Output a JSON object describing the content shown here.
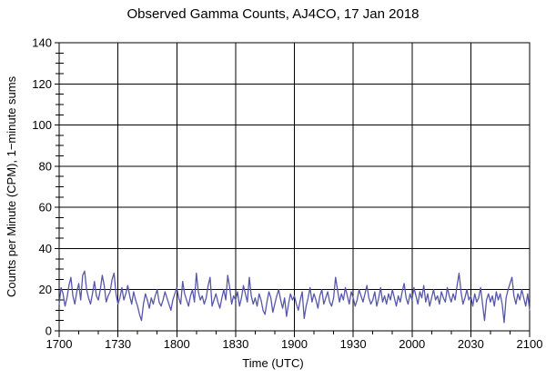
{
  "page": {
    "background": "#ffffff",
    "text_color": "#000000"
  },
  "chart_data": {
    "type": "line",
    "title": "Observed Gamma Counts, AJ4CO, 17 Jan 2018",
    "xlabel": "Time (UTC)",
    "ylabel": "Counts per Minute (CPM), 1−minute sums",
    "grid": true,
    "grid_color": "#000000",
    "frame_color": "#000000",
    "line_color": "#5757aa",
    "xlim": [
      0,
      240
    ],
    "ylim": [
      0,
      140
    ],
    "x_unit": "minutes after 1700 UTC",
    "xtick_positions": [
      0,
      30,
      60,
      90,
      120,
      150,
      180,
      210,
      240
    ],
    "xtick_labels": [
      "1700",
      "1730",
      "1800",
      "1830",
      "1900",
      "1930",
      "2000",
      "2030",
      "2100"
    ],
    "x_minor_step": 10,
    "ytick_positions": [
      0,
      20,
      40,
      60,
      80,
      100,
      120,
      140
    ],
    "ytick_labels": [
      "0",
      "20",
      "40",
      "60",
      "80",
      "100",
      "120",
      "140"
    ],
    "y_minor_step": 5,
    "sample_interval_minutes": 1,
    "series_name": "Observed gamma counts, 1-minute sums",
    "values": [
      13,
      21,
      18,
      12,
      16,
      22,
      26,
      17,
      13,
      19,
      23,
      15,
      27,
      29,
      20,
      16,
      13,
      18,
      24,
      17,
      15,
      20,
      27,
      22,
      14,
      17,
      19,
      25,
      28,
      18,
      13,
      16,
      21,
      15,
      18,
      22,
      17,
      13,
      19,
      15,
      12,
      8,
      5,
      13,
      18,
      15,
      11,
      16,
      13,
      17,
      20,
      14,
      12,
      15,
      19,
      16,
      13,
      10,
      15,
      18,
      21,
      16,
      13,
      24,
      18,
      15,
      12,
      17,
      20,
      14,
      28,
      19,
      15,
      17,
      13,
      16,
      22,
      26,
      12,
      15,
      18,
      14,
      11,
      16,
      20,
      15,
      27,
      21,
      13,
      17,
      15,
      19,
      12,
      16,
      22,
      18,
      14,
      26,
      17,
      13,
      16,
      12,
      18,
      15,
      10,
      8,
      14,
      19,
      16,
      9,
      13,
      17,
      20,
      15,
      11,
      16,
      7,
      13,
      18,
      15,
      17,
      13,
      10,
      15,
      19,
      6,
      12,
      16,
      21,
      14,
      18,
      15,
      11,
      17,
      20,
      13,
      16,
      19,
      14,
      12,
      16,
      26,
      20,
      14,
      18,
      15,
      21,
      17,
      13,
      19,
      16,
      12,
      15,
      20,
      17,
      14,
      18,
      22,
      16,
      13,
      15,
      19,
      12,
      16,
      21,
      14,
      17,
      13,
      18,
      15,
      20,
      16,
      12,
      17,
      14,
      19,
      23,
      16,
      13,
      18,
      15,
      21,
      17,
      13,
      19,
      16,
      22,
      14,
      18,
      12,
      16,
      20,
      15,
      17,
      13,
      19,
      16,
      14,
      21,
      17,
      14,
      18,
      15,
      22,
      28,
      19,
      13,
      16,
      20,
      15,
      17,
      12,
      18,
      14,
      16,
      21,
      13,
      5,
      15,
      18,
      14,
      17,
      12,
      19,
      15,
      18,
      13,
      4,
      16,
      20,
      23,
      26,
      17,
      13,
      18,
      15,
      20,
      16,
      12,
      18,
      10
    ]
  }
}
